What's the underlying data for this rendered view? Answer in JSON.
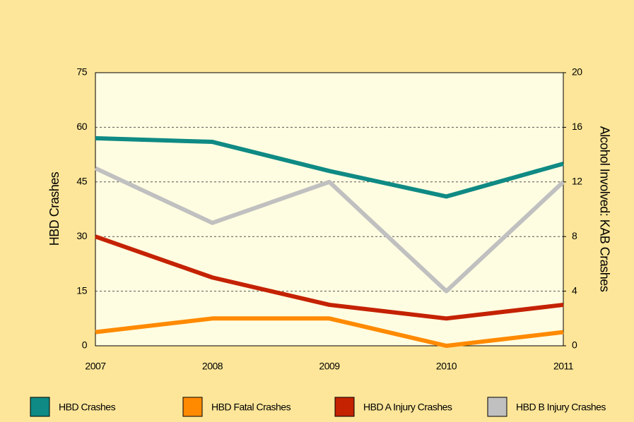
{
  "chart_data": {
    "type": "line",
    "categories": [
      "2007",
      "2008",
      "2009",
      "2010",
      "2011"
    ],
    "y_label": "HBD Crashes",
    "y2_label": "Alcohol Involved: KAB Crashes",
    "ylim": [
      0,
      75
    ],
    "yticks": [
      0,
      15,
      30,
      45,
      60,
      75
    ],
    "y2lim": [
      0,
      20
    ],
    "y2ticks": [
      0,
      4,
      8,
      12,
      16,
      20
    ],
    "grid": true,
    "series": [
      {
        "name": "HBD Crashes",
        "color": "#0f8a84",
        "values": [
          57,
          56,
          48,
          41,
          50
        ]
      },
      {
        "name": "HBD Fatal Crashes",
        "color": "#ff8a00",
        "axis": "y2",
        "values": [
          1,
          2,
          2,
          0,
          1
        ]
      },
      {
        "name": "HBD A Injury Crashes",
        "color": "#c42200",
        "axis": "y2",
        "values": [
          8,
          5,
          3,
          2,
          3
        ]
      },
      {
        "name": "HBD B Injury Crashes",
        "color": "#c0c0c0",
        "axis": "y2",
        "values": [
          13,
          9,
          12,
          4,
          12
        ]
      }
    ]
  }
}
